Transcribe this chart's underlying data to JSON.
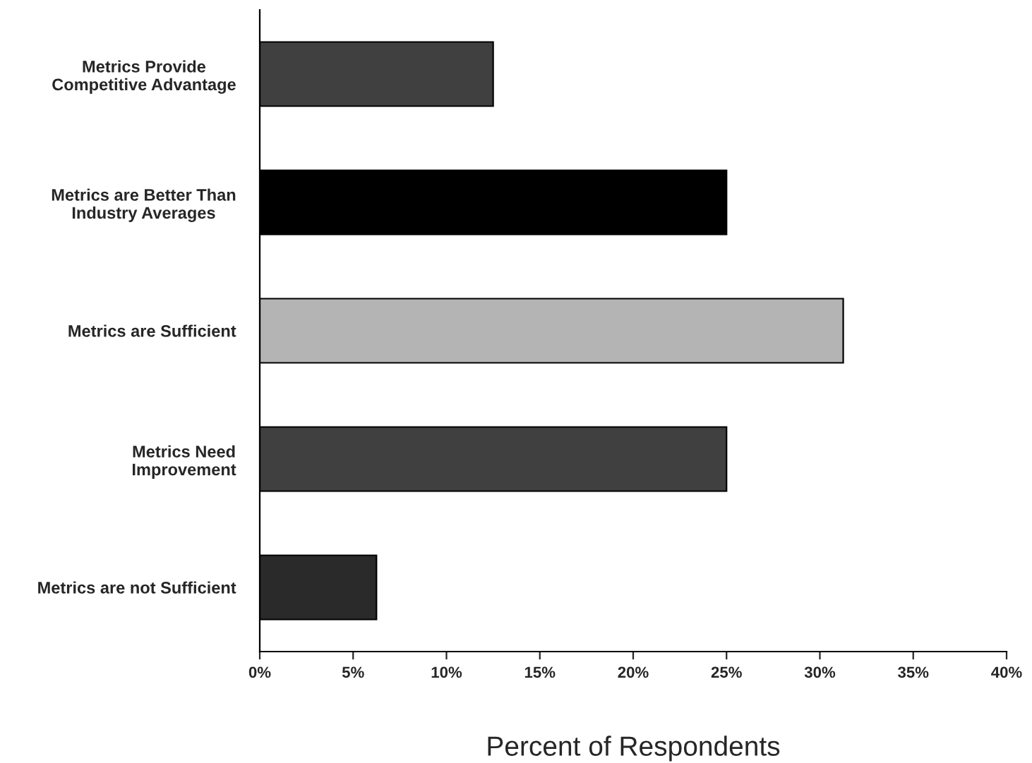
{
  "chart_data": {
    "type": "bar",
    "orientation": "horizontal",
    "xlabel": "Percent of Respondents",
    "categories": [
      "Metrics Provide\nCompetitive Advantage",
      "Metrics are Better Than\nIndustry Averages",
      "Metrics are Sufficient",
      "Metrics Need\nImprovement",
      "Metrics are not Sufficient"
    ],
    "values": [
      12.5,
      25,
      31.25,
      25,
      6.25
    ],
    "colors": [
      "#404040",
      "#000000",
      "#b4b4b4",
      "#404040",
      "#2a2a2a"
    ],
    "xlim": [
      0,
      40
    ],
    "xticks": [
      {
        "value": 0,
        "label": "0%"
      },
      {
        "value": 5,
        "label": "5%"
      },
      {
        "value": 10,
        "label": "10%"
      },
      {
        "value": 15,
        "label": "15%"
      },
      {
        "value": 20,
        "label": "20%"
      },
      {
        "value": 25,
        "label": "25%"
      },
      {
        "value": 30,
        "label": "30%"
      },
      {
        "value": 35,
        "label": "35%"
      },
      {
        "value": 40,
        "label": "40%"
      }
    ],
    "grid": false,
    "legend": false
  }
}
